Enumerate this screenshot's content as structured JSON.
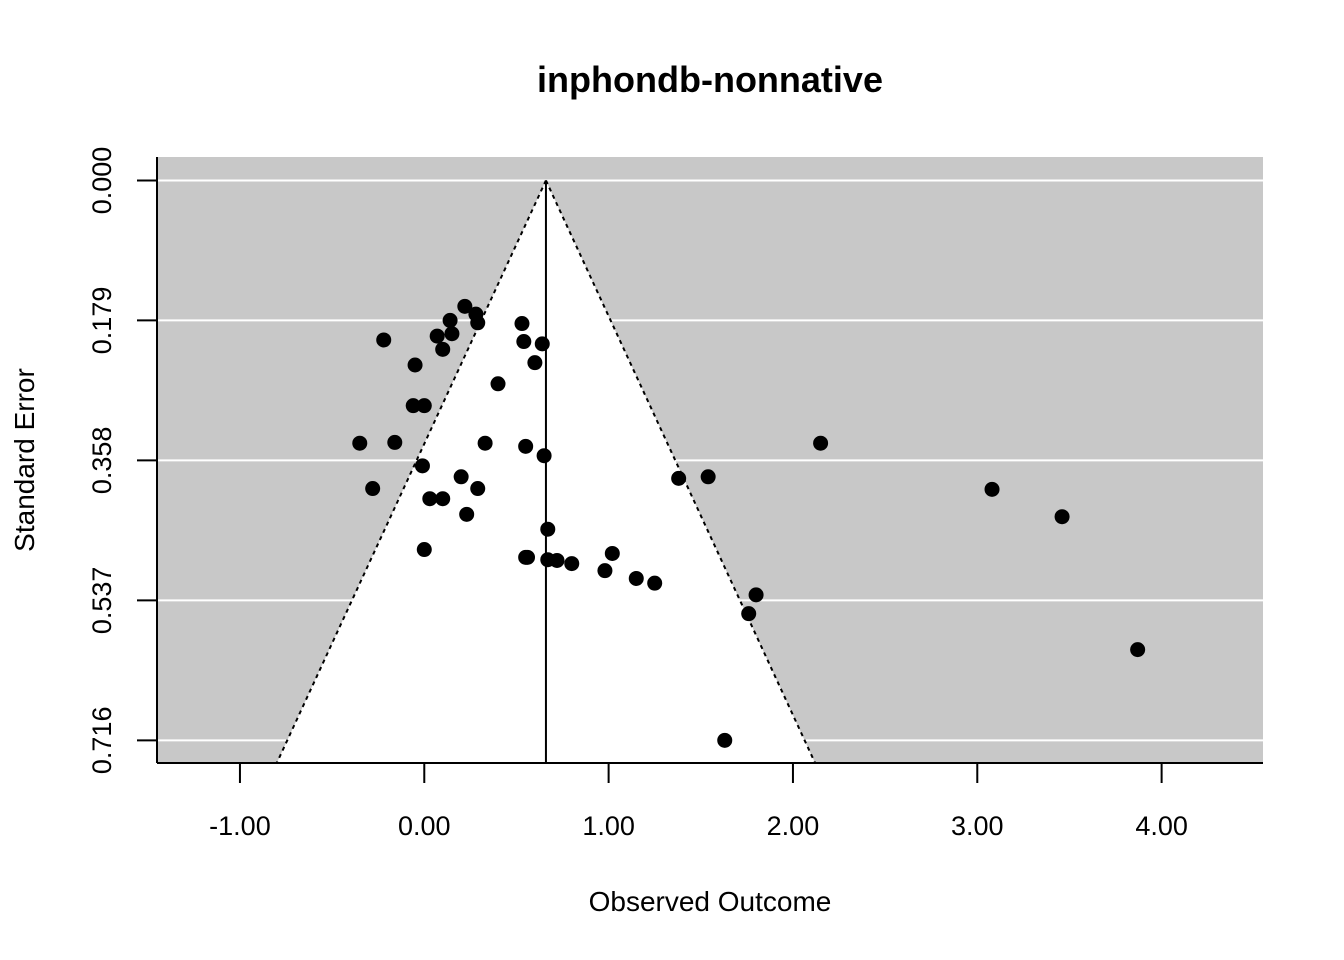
{
  "chart_data": {
    "type": "scatter",
    "subtype": "funnel",
    "title": "inphondb-nonnative",
    "xlabel": "Observed Outcome",
    "ylabel": "Standard Error",
    "xlim": [
      -1.45,
      4.55
    ],
    "ylim": [
      0.745,
      -0.03
    ],
    "y_reversed": true,
    "x_ticks": [
      -1,
      0,
      1,
      2,
      3,
      4
    ],
    "x_tick_labels": [
      "-1.00",
      "0.00",
      "1.00",
      "2.00",
      "3.00",
      "4.00"
    ],
    "y_ticks": [
      0,
      0.179,
      0.358,
      0.537,
      0.716
    ],
    "y_tick_labels": [
      "0.000",
      "0.179",
      "0.358",
      "0.537",
      "0.716"
    ],
    "grid": "horizontal",
    "estimate": 0.66,
    "funnel_z": 1.96,
    "colors": {
      "background": "#c8c8c8",
      "funnel": "#ffffff",
      "gridline": "#ffffff",
      "points": "#000000"
    },
    "points": [
      {
        "x": 0.22,
        "y": 0.161
      },
      {
        "x": 0.28,
        "y": 0.171
      },
      {
        "x": 0.14,
        "y": 0.179
      },
      {
        "x": 0.29,
        "y": 0.182
      },
      {
        "x": 0.53,
        "y": 0.183
      },
      {
        "x": 0.15,
        "y": 0.196
      },
      {
        "x": 0.07,
        "y": 0.199
      },
      {
        "x": -0.22,
        "y": 0.204
      },
      {
        "x": 0.54,
        "y": 0.206
      },
      {
        "x": 0.64,
        "y": 0.209
      },
      {
        "x": 0.1,
        "y": 0.216
      },
      {
        "x": 0.6,
        "y": 0.233
      },
      {
        "x": -0.05,
        "y": 0.236
      },
      {
        "x": 0.4,
        "y": 0.26
      },
      {
        "x": -0.06,
        "y": 0.288
      },
      {
        "x": 0.0,
        "y": 0.288
      },
      {
        "x": -0.35,
        "y": 0.336
      },
      {
        "x": -0.16,
        "y": 0.335
      },
      {
        "x": 0.33,
        "y": 0.336
      },
      {
        "x": 0.55,
        "y": 0.34
      },
      {
        "x": 0.65,
        "y": 0.352
      },
      {
        "x": 2.15,
        "y": 0.336
      },
      {
        "x": -0.01,
        "y": 0.365
      },
      {
        "x": 0.2,
        "y": 0.379
      },
      {
        "x": 1.38,
        "y": 0.381
      },
      {
        "x": 1.54,
        "y": 0.379
      },
      {
        "x": -0.28,
        "y": 0.394
      },
      {
        "x": 0.29,
        "y": 0.394
      },
      {
        "x": 3.08,
        "y": 0.395
      },
      {
        "x": 0.03,
        "y": 0.407
      },
      {
        "x": 0.1,
        "y": 0.407
      },
      {
        "x": 0.23,
        "y": 0.427
      },
      {
        "x": 3.46,
        "y": 0.43
      },
      {
        "x": 0.67,
        "y": 0.446
      },
      {
        "x": 0.0,
        "y": 0.472
      },
      {
        "x": 1.02,
        "y": 0.477
      },
      {
        "x": 0.55,
        "y": 0.482
      },
      {
        "x": 0.56,
        "y": 0.482
      },
      {
        "x": 0.67,
        "y": 0.485
      },
      {
        "x": 0.72,
        "y": 0.486
      },
      {
        "x": 0.8,
        "y": 0.49
      },
      {
        "x": 0.98,
        "y": 0.499
      },
      {
        "x": 1.15,
        "y": 0.509
      },
      {
        "x": 1.25,
        "y": 0.515
      },
      {
        "x": 1.8,
        "y": 0.53
      },
      {
        "x": 1.76,
        "y": 0.554
      },
      {
        "x": 3.87,
        "y": 0.6
      },
      {
        "x": 1.63,
        "y": 0.716
      }
    ]
  }
}
